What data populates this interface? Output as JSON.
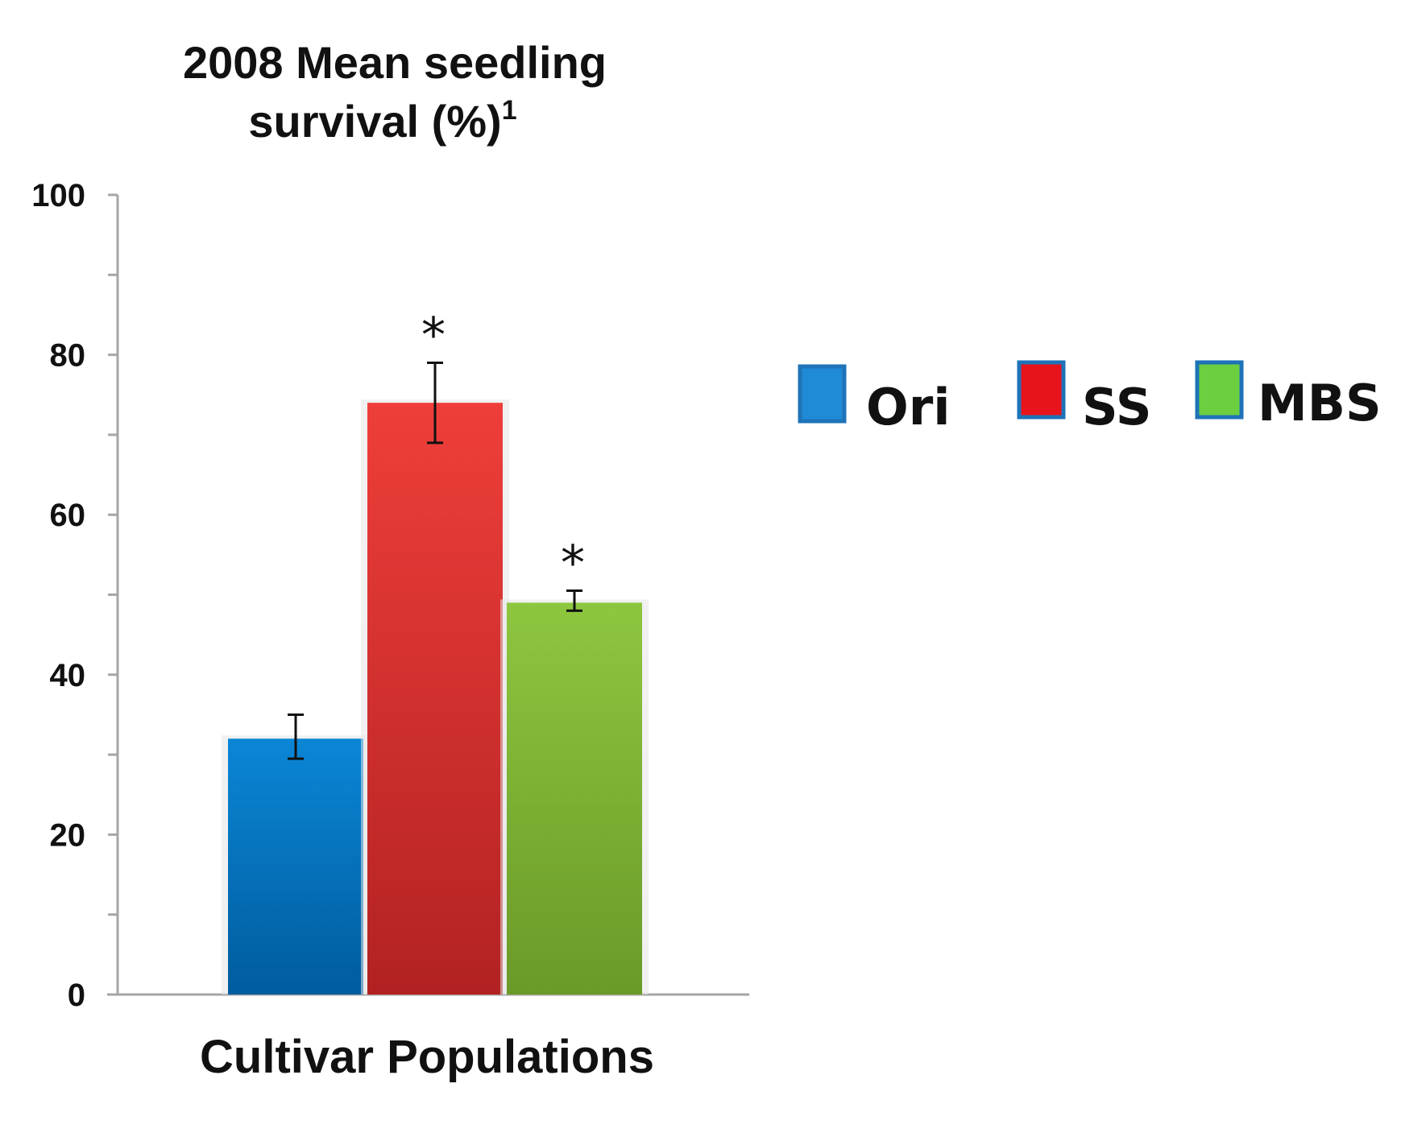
{
  "chart_data": {
    "type": "bar",
    "title": "2008 Mean seedling",
    "title_line2": "survival (%)",
    "title_superscript": "1",
    "xlabel": "Cultivar Populations",
    "ylabel": "",
    "ylim": [
      0,
      100
    ],
    "yticks": [
      "0",
      "20",
      "40",
      "60",
      "80",
      "100"
    ],
    "ytick_values": [
      0,
      20,
      40,
      60,
      80,
      100
    ],
    "minor_tick_step": 10,
    "grid": false,
    "legend_position": "right",
    "series": [
      {
        "name": "Ori",
        "value": 32,
        "error_low": 29.5,
        "error_high": 35,
        "significant": false,
        "color_top": "#0B86D6",
        "color_bottom": "#005C9E",
        "legend_color": "#1F8AD6"
      },
      {
        "name": "SS",
        "value": 74,
        "error_low": 69,
        "error_high": 79,
        "significant": true,
        "color_top": "#EF3E3A",
        "color_bottom": "#B22222",
        "legend_color": "#E8141B"
      },
      {
        "name": "MBS",
        "value": 49,
        "error_low": 48,
        "error_high": 50.5,
        "significant": true,
        "color_top": "#8DC63F",
        "color_bottom": "#6A9A28",
        "legend_color": "#6CCF3F"
      }
    ],
    "significance_marker": "*",
    "legend_border_color": "#1E73B8"
  }
}
